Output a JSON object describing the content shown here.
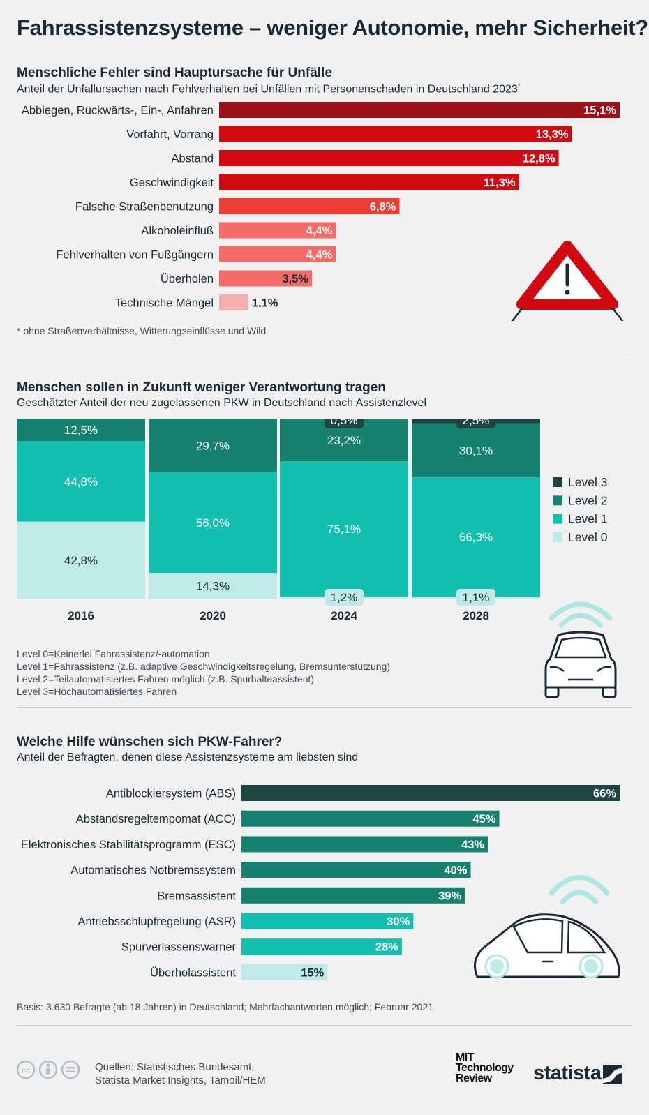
{
  "title": "Fahrassistenzsysteme – weniger Autonomie, mehr Sicherheit?",
  "section1": {
    "title": "Menschliche Fehler sind Hauptursache für Unfälle",
    "subtitle": "Anteil der Unfallursachen nach Fehlverhalten bei Unfällen mit Personenschaden in Deutschland 2023",
    "subtitle_mark": "*",
    "footnote": "* ohne Straßenverhältnisse, Witterungseinflüsse und Wild"
  },
  "section2": {
    "title": "Menschen sollen in Zukunft weniger Verantwortung tragen",
    "subtitle": "Geschätzter Anteil der neu zugelassenen PKW in Deutschland nach Assistenzlevel",
    "definitions": [
      "Level 0=Keinerlei Fahrassistenz/-automation",
      "Level 1=Fahrassistenz (z.B. adaptive Geschwindigkeitsregelung, Bremsunterstützung)",
      "Level 2=Teilautomatisiertes Fahren möglich (z.B. Spurhalteassistent)",
      "Level 3=Hochautomatisiertes Fahren"
    ]
  },
  "section3": {
    "title": "Welche Hilfe wünschen sich PKW-Fahrer?",
    "subtitle": "Anteil der Befragten, denen diese Assistenzsysteme am liebsten sind",
    "basis": "Basis: 3.630 Befragte (ab 18 Jahren) in Deutschland; Mehrfachantworten möglich; Februar 2021"
  },
  "footer": {
    "sources_line1": "Quellen: Statistisches Bundesamt,",
    "sources_line2": "Statista Market Insights, Tamoil/HEM",
    "logo_mit": [
      "MIT",
      "Technology",
      "Review"
    ],
    "logo_statista": "statista"
  },
  "chart_data": [
    {
      "type": "bar",
      "orientation": "horizontal",
      "title": "Menschliche Fehler sind Hauptursache für Unfälle",
      "unit": "%",
      "categories": [
        "Abbiegen, Rückwärts-, Ein-, Anfahren",
        "Vorfahrt, Vorrang",
        "Abstand",
        "Geschwindigkeit",
        "Falsche Straßenbenutzung",
        "Alkoholeinfluß",
        "Fehlverhalten von Fußgängern",
        "Überholen",
        "Technische Mängel"
      ],
      "values": [
        15.1,
        13.3,
        12.8,
        11.3,
        6.8,
        4.4,
        4.4,
        3.5,
        1.1
      ],
      "labels": [
        "15,1%",
        "13,3%",
        "12,8%",
        "11,3%",
        "6,8%",
        "4,4%",
        "4,4%",
        "3,5%",
        "1,1%"
      ],
      "colors": [
        "#9b0f17",
        "#d00a10",
        "#d00a10",
        "#d00a10",
        "#ee3d33",
        "#f46a66",
        "#f46a66",
        "#f46a66",
        "#f5aeae"
      ],
      "xlim": [
        0,
        15.1
      ]
    },
    {
      "type": "bar",
      "stacked": true,
      "title": "Menschen sollen in Zukunft weniger Verantwortung tragen",
      "unit": "%",
      "categories": [
        "2016",
        "2020",
        "2024",
        "2028"
      ],
      "series": [
        {
          "name": "Level 0",
          "color": "#bfeae8",
          "values": [
            42.8,
            14.3,
            1.2,
            1.1
          ],
          "labels": [
            "42,8%",
            "14,3%",
            "1,2%",
            "1,1%"
          ]
        },
        {
          "name": "Level 1",
          "color": "#13bfae",
          "values": [
            44.8,
            56.0,
            75.1,
            66.3
          ],
          "labels": [
            "44,8%",
            "56,0%",
            "75,1%",
            "66,3%"
          ]
        },
        {
          "name": "Level 2",
          "color": "#16816f",
          "values": [
            12.5,
            29.7,
            23.2,
            30.1
          ],
          "labels": [
            "12,5%",
            "29,7%",
            "23,2%",
            "30,1%"
          ]
        },
        {
          "name": "Level 3",
          "color": "#1d4440",
          "values": [
            0,
            0,
            0.5,
            2.5
          ],
          "labels": [
            "",
            "",
            "0,5%",
            "2,5%"
          ]
        }
      ],
      "legend": [
        "Level 3",
        "Level 2",
        "Level 1",
        "Level 0"
      ],
      "ylim": [
        0,
        100
      ]
    },
    {
      "type": "bar",
      "orientation": "horizontal",
      "title": "Welche Hilfe wünschen sich PKW-Fahrer?",
      "unit": "%",
      "categories": [
        "Antiblockiersystem (ABS)",
        "Abstandsregeltempomat (ACC)",
        "Elektronisches Stabilitätsprogramm (ESC)",
        "Automatisches Notbremssystem",
        "Bremsassistent",
        "Antriebsschlupfregelung (ASR)",
        "Spurverlassenswarner",
        "Überholassistent"
      ],
      "values": [
        66,
        45,
        43,
        40,
        39,
        30,
        28,
        15
      ],
      "labels": [
        "66%",
        "45%",
        "43%",
        "40%",
        "39%",
        "30%",
        "28%",
        "15%"
      ],
      "colors": [
        "#1f4742",
        "#16816f",
        "#16816f",
        "#16816f",
        "#16816f",
        "#13bfae",
        "#13bfae",
        "#bfeae8"
      ],
      "xlim": [
        0,
        66
      ]
    }
  ]
}
